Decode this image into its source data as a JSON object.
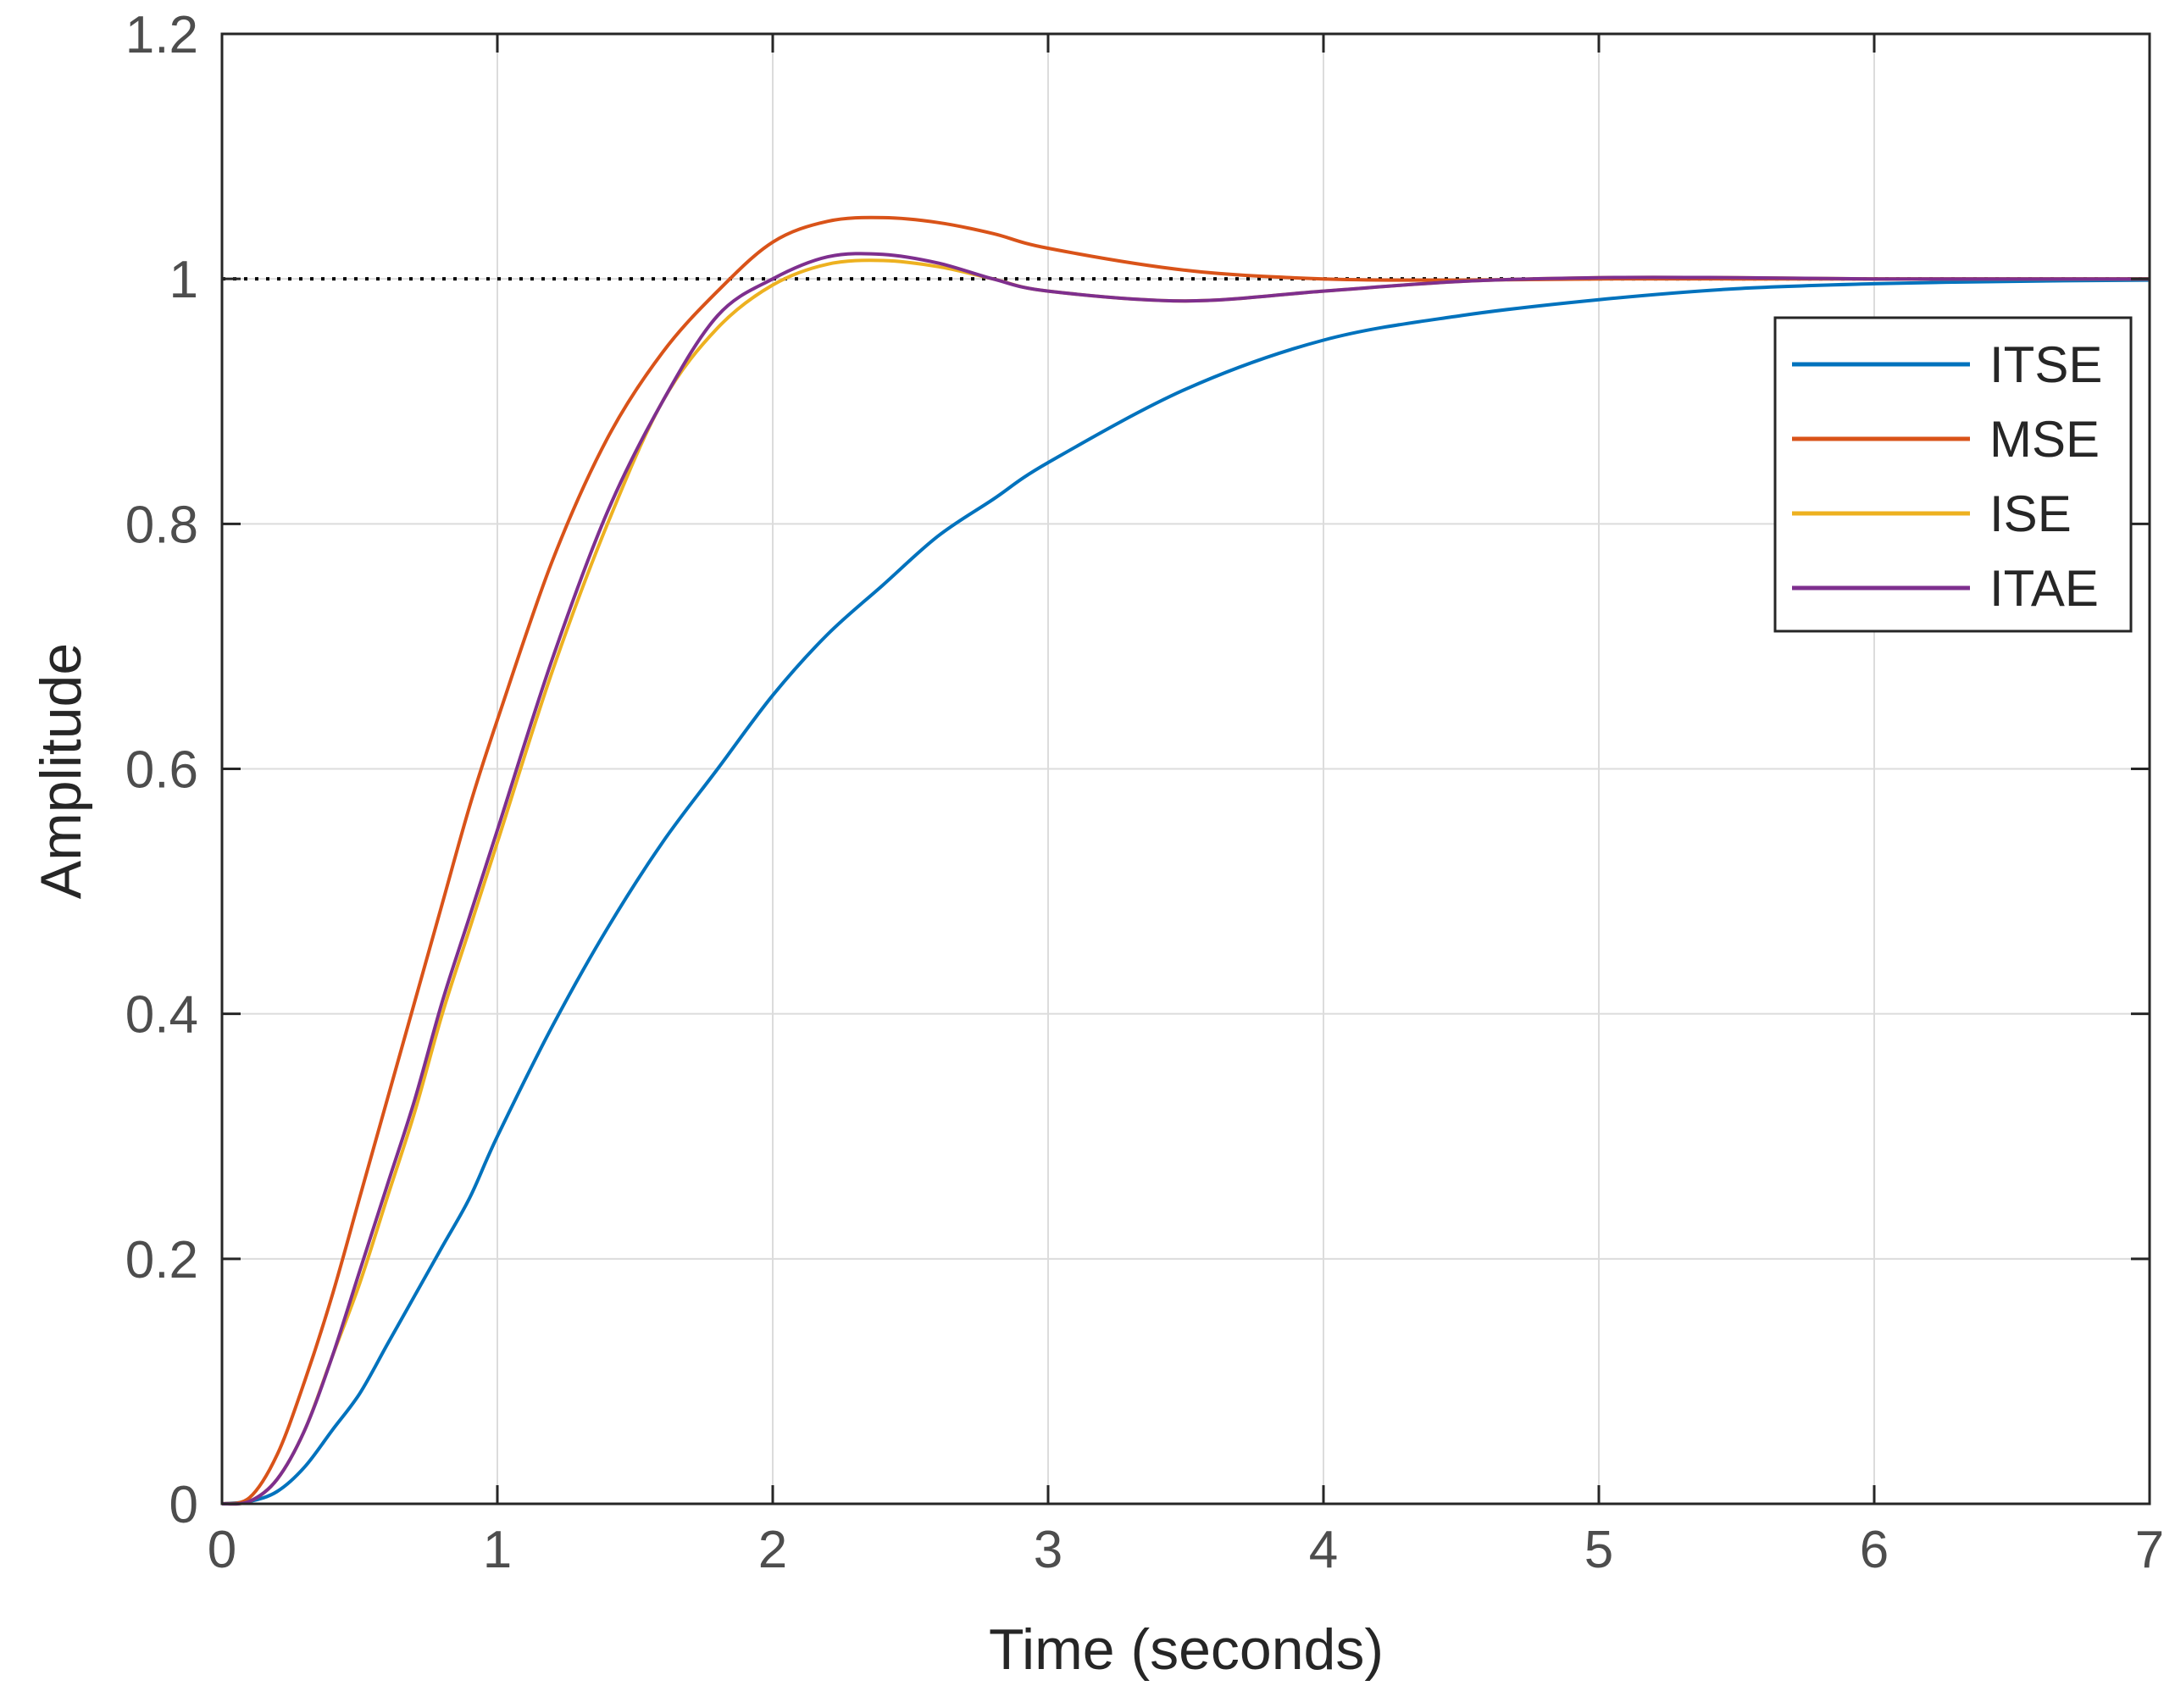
{
  "chart_data": {
    "type": "line",
    "title": "",
    "xlabel": "Time (seconds)",
    "ylabel": "Amplitude",
    "xlim": [
      0,
      7
    ],
    "ylim": [
      0,
      1.2
    ],
    "xticks": [
      0,
      1,
      2,
      3,
      4,
      5,
      6,
      7
    ],
    "yticks": [
      0,
      0.2,
      0.4,
      0.6,
      0.8,
      1,
      1.2
    ],
    "xtick_labels": [
      "0",
      "1",
      "2",
      "3",
      "4",
      "5",
      "6",
      "7"
    ],
    "ytick_labels": [
      "0",
      "0.2",
      "0.4",
      "0.6",
      "0.8",
      "1",
      "1.2"
    ],
    "grid": true,
    "legend_position": "top-right",
    "reference_line": {
      "y": 1,
      "style": "dotted",
      "color": "#000000"
    },
    "series": [
      {
        "name": "ITSE",
        "color": "#0072BD",
        "x": [
          0,
          0.1,
          0.2,
          0.3,
          0.4,
          0.5,
          0.6,
          0.7,
          0.8,
          0.9,
          1.0,
          1.2,
          1.4,
          1.6,
          1.8,
          2.0,
          2.2,
          2.4,
          2.6,
          2.8,
          3.0,
          3.5,
          4.0,
          4.5,
          5.0,
          5.5,
          6.0,
          6.5,
          7.0
        ],
        "y": [
          0,
          0.002,
          0.01,
          0.03,
          0.06,
          0.09,
          0.13,
          0.17,
          0.21,
          0.25,
          0.3,
          0.39,
          0.47,
          0.54,
          0.6,
          0.66,
          0.71,
          0.75,
          0.79,
          0.82,
          0.85,
          0.91,
          0.95,
          0.97,
          0.983,
          0.992,
          0.996,
          0.998,
          0.999
        ]
      },
      {
        "name": "MSE",
        "color": "#D95319",
        "x": [
          0,
          0.1,
          0.2,
          0.3,
          0.4,
          0.5,
          0.6,
          0.7,
          0.8,
          0.9,
          1.0,
          1.2,
          1.4,
          1.6,
          1.8,
          2.0,
          2.2,
          2.4,
          2.6,
          2.8,
          3.0,
          3.5,
          4.0,
          4.5,
          5.0,
          5.5,
          6.0,
          6.5,
          7.0
        ],
        "y": [
          0,
          0.005,
          0.04,
          0.1,
          0.17,
          0.25,
          0.33,
          0.41,
          0.49,
          0.57,
          0.64,
          0.77,
          0.87,
          0.94,
          0.99,
          1.03,
          1.047,
          1.05,
          1.046,
          1.037,
          1.025,
          1.007,
          1.0,
          0.999,
          1.0,
          1.0,
          1.0,
          1.0,
          1.0
        ]
      },
      {
        "name": "ISE",
        "color": "#EDB120",
        "x": [
          0,
          0.1,
          0.2,
          0.3,
          0.4,
          0.5,
          0.6,
          0.7,
          0.8,
          0.9,
          1.0,
          1.2,
          1.4,
          1.6,
          1.8,
          2.0,
          2.2,
          2.4,
          2.6,
          2.8,
          3.0,
          3.5,
          4.0,
          4.5,
          5.0,
          5.5,
          6.0,
          6.5,
          7.0
        ],
        "y": [
          0,
          0.002,
          0.02,
          0.06,
          0.12,
          0.18,
          0.25,
          0.32,
          0.4,
          0.47,
          0.54,
          0.68,
          0.8,
          0.9,
          0.96,
          0.995,
          1.012,
          1.015,
          1.01,
          1.0,
          0.99,
          0.982,
          0.99,
          0.998,
          1.001,
          1.001,
          1.0,
          1.0,
          1.0
        ]
      },
      {
        "name": "ITAE",
        "color": "#7E2F8E",
        "x": [
          0,
          0.1,
          0.2,
          0.3,
          0.4,
          0.5,
          0.6,
          0.7,
          0.8,
          0.9,
          1.0,
          1.2,
          1.4,
          1.6,
          1.8,
          2.0,
          2.2,
          2.4,
          2.6,
          2.8,
          3.0,
          3.5,
          4.0,
          4.5,
          5.0,
          5.5,
          6.0,
          6.5,
          7.0
        ],
        "y": [
          0,
          0.002,
          0.02,
          0.06,
          0.12,
          0.19,
          0.26,
          0.33,
          0.41,
          0.48,
          0.55,
          0.69,
          0.81,
          0.9,
          0.97,
          1.0,
          1.018,
          1.02,
          1.013,
          1.0,
          0.99,
          0.982,
          0.99,
          0.998,
          1.001,
          1.001,
          1.0,
          1.0,
          1.0
        ]
      }
    ]
  }
}
